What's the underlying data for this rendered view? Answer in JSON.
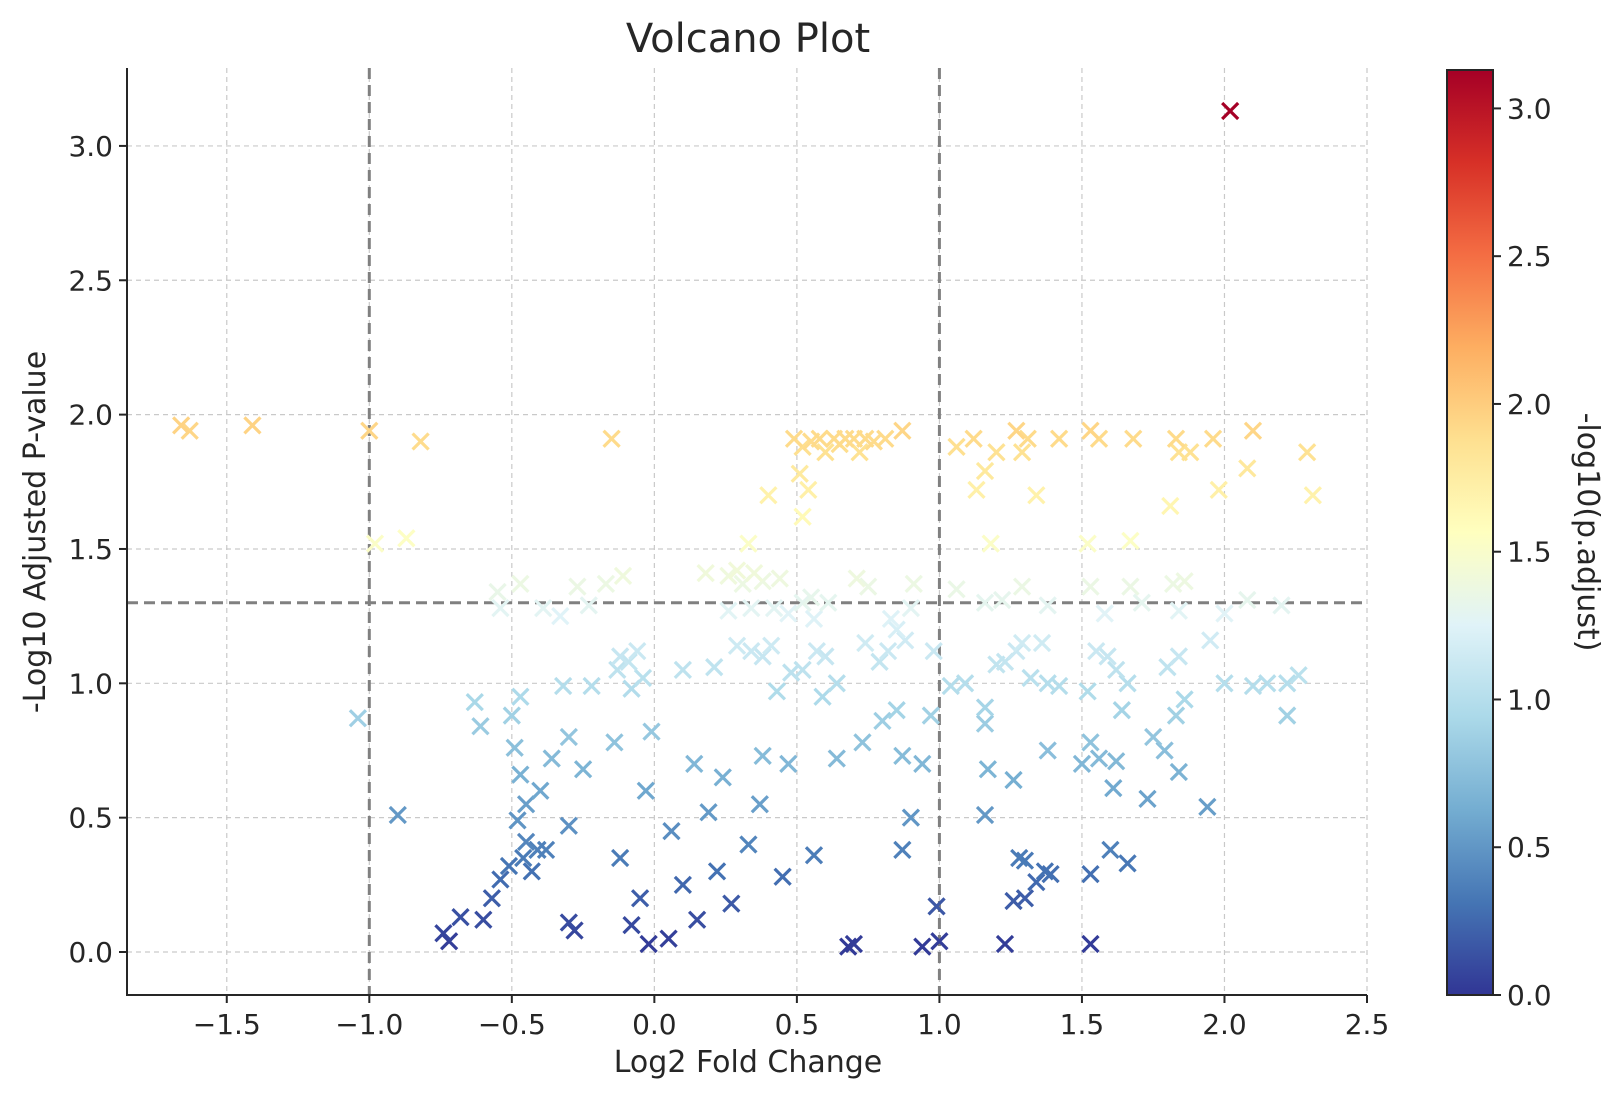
{
  "chart_data": {
    "type": "scatter",
    "title": "Volcano Plot",
    "xlabel": "Log2 Fold Change",
    "ylabel": "-Log10 Adjusted P-value",
    "colorbar_label": "-log10(p.adjust)",
    "xlim": [
      -1.85,
      2.5
    ],
    "ylim": [
      -0.16,
      3.29
    ],
    "x_ticks": [
      -1.5,
      -1.0,
      -0.5,
      0.0,
      0.5,
      1.0,
      1.5,
      2.0,
      2.5
    ],
    "x_tick_labels": [
      "−1.5",
      "−1.0",
      "−0.5",
      "0.0",
      "0.5",
      "1.0",
      "1.5",
      "2.0",
      "2.5"
    ],
    "y_ticks": [
      0.0,
      0.5,
      1.0,
      1.5,
      2.0,
      2.5,
      3.0
    ],
    "y_tick_labels": [
      "0.0",
      "0.5",
      "1.0",
      "1.5",
      "2.0",
      "2.5",
      "3.0"
    ],
    "colorbar_range": [
      0.0,
      3.13
    ],
    "colorbar_ticks": [
      0.0,
      0.5,
      1.0,
      1.5,
      2.0,
      2.5,
      3.0
    ],
    "colorbar_tick_labels": [
      "0.0",
      "0.5",
      "1.0",
      "1.5",
      "2.0",
      "2.5",
      "3.0"
    ],
    "colormap": "RdYlBu_r",
    "marker": "x",
    "grid": true,
    "reference_lines": {
      "vertical": [
        -1.0,
        1.0
      ],
      "horizontal": [
        1.3
      ]
    },
    "points": [
      [
        2.02,
        3.13
      ],
      [
        -1.66,
        1.96
      ],
      [
        -1.63,
        1.94
      ],
      [
        -1.41,
        1.96
      ],
      [
        -1.0,
        1.94
      ],
      [
        -0.82,
        1.9
      ],
      [
        -0.15,
        1.91
      ],
      [
        0.49,
        1.91
      ],
      [
        0.52,
        1.88
      ],
      [
        0.55,
        1.9
      ],
      [
        0.58,
        1.91
      ],
      [
        0.6,
        1.86
      ],
      [
        0.63,
        1.91
      ],
      [
        0.65,
        1.89
      ],
      [
        0.67,
        1.91
      ],
      [
        0.7,
        1.91
      ],
      [
        0.72,
        1.86
      ],
      [
        0.74,
        1.91
      ],
      [
        0.77,
        1.9
      ],
      [
        0.81,
        1.91
      ],
      [
        0.87,
        1.94
      ],
      [
        0.51,
        1.78
      ],
      [
        0.54,
        1.72
      ],
      [
        0.52,
        1.62
      ],
      [
        0.4,
        1.7
      ],
      [
        1.06,
        1.88
      ],
      [
        1.12,
        1.91
      ],
      [
        1.16,
        1.79
      ],
      [
        1.2,
        1.86
      ],
      [
        1.13,
        1.72
      ],
      [
        1.27,
        1.94
      ],
      [
        1.29,
        1.86
      ],
      [
        1.31,
        1.91
      ],
      [
        1.34,
        1.7
      ],
      [
        1.42,
        1.91
      ],
      [
        1.53,
        1.94
      ],
      [
        1.56,
        1.91
      ],
      [
        1.68,
        1.91
      ],
      [
        1.81,
        1.66
      ],
      [
        1.83,
        1.91
      ],
      [
        1.84,
        1.86
      ],
      [
        1.88,
        1.86
      ],
      [
        1.96,
        1.91
      ],
      [
        1.98,
        1.72
      ],
      [
        2.08,
        1.8
      ],
      [
        2.1,
        1.94
      ],
      [
        2.29,
        1.86
      ],
      [
        2.31,
        1.7
      ],
      [
        -0.98,
        1.52
      ],
      [
        -0.87,
        1.54
      ],
      [
        0.33,
        1.52
      ],
      [
        1.18,
        1.52
      ],
      [
        1.52,
        1.52
      ],
      [
        1.67,
        1.53
      ],
      [
        -0.55,
        1.34
      ],
      [
        -0.47,
        1.37
      ],
      [
        -0.27,
        1.36
      ],
      [
        -0.17,
        1.37
      ],
      [
        -0.11,
        1.4
      ],
      [
        0.18,
        1.41
      ],
      [
        0.26,
        1.4
      ],
      [
        0.29,
        1.42
      ],
      [
        0.31,
        1.37
      ],
      [
        0.35,
        1.41
      ],
      [
        0.38,
        1.38
      ],
      [
        0.44,
        1.39
      ],
      [
        0.55,
        1.32
      ],
      [
        0.71,
        1.39
      ],
      [
        0.75,
        1.36
      ],
      [
        0.91,
        1.37
      ],
      [
        1.06,
        1.35
      ],
      [
        1.22,
        1.31
      ],
      [
        1.29,
        1.36
      ],
      [
        1.53,
        1.36
      ],
      [
        1.67,
        1.36
      ],
      [
        1.82,
        1.37
      ],
      [
        1.86,
        1.38
      ],
      [
        2.08,
        1.31
      ],
      [
        -0.54,
        1.28
      ],
      [
        -0.39,
        1.28
      ],
      [
        -0.33,
        1.25
      ],
      [
        -0.23,
        1.29
      ],
      [
        0.26,
        1.27
      ],
      [
        0.34,
        1.28
      ],
      [
        0.42,
        1.28
      ],
      [
        0.47,
        1.26
      ],
      [
        0.52,
        1.3
      ],
      [
        0.56,
        1.24
      ],
      [
        0.61,
        1.3
      ],
      [
        0.83,
        1.24
      ],
      [
        0.85,
        1.2
      ],
      [
        0.9,
        1.28
      ],
      [
        1.16,
        1.3
      ],
      [
        1.38,
        1.29
      ],
      [
        1.58,
        1.26
      ],
      [
        1.71,
        1.3
      ],
      [
        1.84,
        1.27
      ],
      [
        2.0,
        1.26
      ],
      [
        2.2,
        1.29
      ],
      [
        -0.12,
        1.1
      ],
      [
        -0.09,
        1.08
      ],
      [
        -0.06,
        1.12
      ],
      [
        -0.04,
        1.02
      ],
      [
        -0.13,
        1.05
      ],
      [
        -0.08,
        0.98
      ],
      [
        0.1,
        1.05
      ],
      [
        0.21,
        1.06
      ],
      [
        0.29,
        1.14
      ],
      [
        0.34,
        1.12
      ],
      [
        0.38,
        1.1
      ],
      [
        0.41,
        1.14
      ],
      [
        0.48,
        1.04
      ],
      [
        0.52,
        1.05
      ],
      [
        0.57,
        1.12
      ],
      [
        0.6,
        1.1
      ],
      [
        0.64,
        1.0
      ],
      [
        0.74,
        1.15
      ],
      [
        0.79,
        1.08
      ],
      [
        0.82,
        1.12
      ],
      [
        0.88,
        1.16
      ],
      [
        0.98,
        1.12
      ],
      [
        1.04,
        0.99
      ],
      [
        1.09,
        1.0
      ],
      [
        1.2,
        1.07
      ],
      [
        1.23,
        1.08
      ],
      [
        1.27,
        1.12
      ],
      [
        1.29,
        1.15
      ],
      [
        1.32,
        1.02
      ],
      [
        1.36,
        1.15
      ],
      [
        1.38,
        1.0
      ],
      [
        1.42,
        0.99
      ],
      [
        1.55,
        1.12
      ],
      [
        1.59,
        1.1
      ],
      [
        1.62,
        1.05
      ],
      [
        1.66,
        1.0
      ],
      [
        1.8,
        1.06
      ],
      [
        1.84,
        1.1
      ],
      [
        1.95,
        1.16
      ],
      [
        2.0,
        1.0
      ],
      [
        2.1,
        0.99
      ],
      [
        2.15,
        1.0
      ],
      [
        2.22,
        1.0
      ],
      [
        2.26,
        1.03
      ],
      [
        -1.04,
        0.87
      ],
      [
        -0.63,
        0.93
      ],
      [
        -0.61,
        0.84
      ],
      [
        -0.5,
        0.88
      ],
      [
        -0.47,
        0.95
      ],
      [
        -0.32,
        0.99
      ],
      [
        -0.22,
        0.99
      ],
      [
        -0.01,
        0.82
      ],
      [
        0.43,
        0.97
      ],
      [
        0.59,
        0.95
      ],
      [
        0.8,
        0.86
      ],
      [
        0.85,
        0.9
      ],
      [
        0.97,
        0.88
      ],
      [
        1.16,
        0.91
      ],
      [
        1.16,
        0.85
      ],
      [
        1.52,
        0.97
      ],
      [
        1.64,
        0.9
      ],
      [
        1.83,
        0.88
      ],
      [
        1.86,
        0.94
      ],
      [
        2.22,
        0.88
      ],
      [
        -0.49,
        0.76
      ],
      [
        -0.47,
        0.66
      ],
      [
        -0.45,
        0.55
      ],
      [
        -0.4,
        0.6
      ],
      [
        -0.36,
        0.72
      ],
      [
        -0.3,
        0.8
      ],
      [
        -0.25,
        0.68
      ],
      [
        -0.14,
        0.78
      ],
      [
        0.38,
        0.73
      ],
      [
        0.47,
        0.7
      ],
      [
        0.64,
        0.72
      ],
      [
        0.73,
        0.78
      ],
      [
        0.87,
        0.73
      ],
      [
        0.94,
        0.7
      ],
      [
        1.17,
        0.68
      ],
      [
        1.26,
        0.64
      ],
      [
        1.38,
        0.75
      ],
      [
        1.5,
        0.7
      ],
      [
        1.53,
        0.78
      ],
      [
        1.56,
        0.72
      ],
      [
        1.61,
        0.61
      ],
      [
        1.62,
        0.71
      ],
      [
        1.73,
        0.57
      ],
      [
        1.75,
        0.8
      ],
      [
        1.79,
        0.75
      ],
      [
        1.84,
        0.67
      ],
      [
        1.94,
        0.54
      ],
      [
        -0.9,
        0.51
      ],
      [
        -0.48,
        0.49
      ],
      [
        -0.45,
        0.41
      ],
      [
        -0.38,
        0.38
      ],
      [
        -0.3,
        0.47
      ],
      [
        0.9,
        0.5
      ],
      [
        1.16,
        0.51
      ],
      [
        0.87,
        0.38
      ],
      [
        -0.74,
        0.07
      ],
      [
        -0.72,
        0.04
      ],
      [
        -0.68,
        0.13
      ],
      [
        -0.6,
        0.12
      ],
      [
        -0.57,
        0.2
      ],
      [
        -0.54,
        0.27
      ],
      [
        -0.51,
        0.32
      ],
      [
        -0.46,
        0.35
      ],
      [
        -0.43,
        0.3
      ],
      [
        -0.41,
        0.38
      ],
      [
        -0.3,
        0.11
      ],
      [
        -0.28,
        0.08
      ],
      [
        0.68,
        0.02
      ],
      [
        0.7,
        0.03
      ],
      [
        0.94,
        0.02
      ],
      [
        0.99,
        0.17
      ],
      [
        1.0,
        0.04
      ],
      [
        1.23,
        0.03
      ],
      [
        1.26,
        0.19
      ],
      [
        1.28,
        0.35
      ],
      [
        1.3,
        0.34
      ],
      [
        1.3,
        0.2
      ],
      [
        1.34,
        0.26
      ],
      [
        1.37,
        0.3
      ],
      [
        1.39,
        0.29
      ],
      [
        1.53,
        0.29
      ],
      [
        1.53,
        0.03
      ],
      [
        1.6,
        0.38
      ],
      [
        1.66,
        0.33
      ],
      [
        -0.02,
        0.03
      ],
      [
        0.05,
        0.05
      ],
      [
        -0.08,
        0.1
      ],
      [
        0.15,
        0.12
      ],
      [
        -0.05,
        0.2
      ],
      [
        0.1,
        0.25
      ],
      [
        0.22,
        0.3
      ],
      [
        0.27,
        0.18
      ],
      [
        -0.12,
        0.35
      ],
      [
        0.33,
        0.4
      ],
      [
        0.06,
        0.45
      ],
      [
        0.19,
        0.52
      ],
      [
        0.37,
        0.55
      ],
      [
        -0.03,
        0.6
      ],
      [
        0.24,
        0.65
      ],
      [
        0.14,
        0.7
      ],
      [
        0.45,
        0.28
      ],
      [
        0.56,
        0.36
      ]
    ]
  }
}
